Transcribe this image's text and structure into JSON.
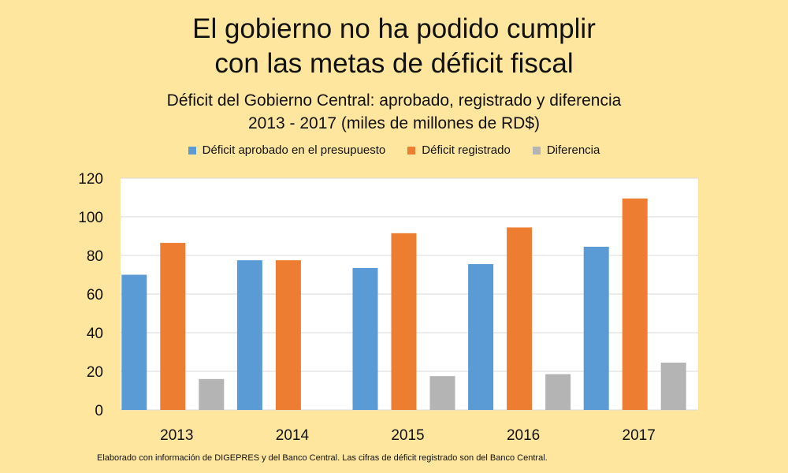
{
  "chart_data": {
    "type": "bar",
    "title": [
      "El gobierno no ha podido cumplir",
      "con las metas de déficit fiscal"
    ],
    "subtitle": [
      "Déficit del Gobierno Central: aprobado, registrado y diferencia",
      "2013 - 2017 (miles de millones de RD$)"
    ],
    "categories": [
      "2013",
      "2014",
      "2015",
      "2016",
      "2017"
    ],
    "series": [
      {
        "name": "Déficit aprobado en el presupuesto",
        "color": "#5b9bd5",
        "values": [
          70,
          77.5,
          73.5,
          75.5,
          84.5
        ]
      },
      {
        "name": "Déficit registrado",
        "color": "#ed7d31",
        "values": [
          86.5,
          77.5,
          91.5,
          94.5,
          109.5
        ]
      },
      {
        "name": "Diferencia",
        "color": "#b4b4b4",
        "values": [
          16,
          null,
          17.5,
          18.5,
          24.5
        ]
      }
    ],
    "ylim": [
      0,
      120
    ],
    "yticks": [
      "0",
      "20",
      "40",
      "60",
      "80",
      "100",
      "120"
    ],
    "grid": true,
    "legend_position": "top",
    "xlabel": "",
    "ylabel": ""
  },
  "footnote": "Elaborado con información de DIGEPRES y del Banco Central. Las cifras de déficit registrado son del Banco Central."
}
